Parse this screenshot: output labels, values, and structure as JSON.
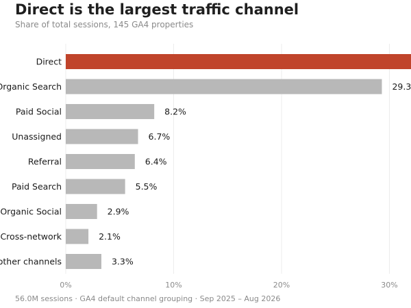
{
  "header": {
    "title": "Direct is the largest traffic channel",
    "subtitle": "Share of total sessions, 145 GA4 properties"
  },
  "footer": {
    "note": "56.0M sessions · GA4 default channel grouping · Sep 2025 – Aug 2026"
  },
  "colors": {
    "highlight": "#c0442b",
    "bar": "#b8b8b8",
    "grid": "#ececec",
    "tick": "#8a8a8a"
  },
  "chart_data": {
    "type": "bar",
    "orientation": "horizontal",
    "title": "Direct is the largest traffic channel",
    "subtitle": "Share of total sessions, 145 GA4 properties",
    "categories": [
      "Direct",
      "Organic Search",
      "Paid Social",
      "Unassigned",
      "Referral",
      "Paid Search",
      "Organic Social",
      "Cross-network",
      "other channels"
    ],
    "values": [
      32.9,
      29.3,
      8.2,
      6.7,
      6.4,
      5.5,
      2.9,
      2.1,
      3.3
    ],
    "value_labels": [
      "",
      "29.3",
      "8.2%",
      "6.7%",
      "6.4%",
      "5.5%",
      "2.9%",
      "2.1%",
      "3.3%"
    ],
    "highlight_index": 0,
    "xlim": [
      0,
      32.9
    ],
    "xticks": [
      0,
      10,
      20,
      30
    ],
    "xtick_labels": [
      "0%",
      "10%",
      "20%",
      "30%"
    ],
    "grid": true
  }
}
